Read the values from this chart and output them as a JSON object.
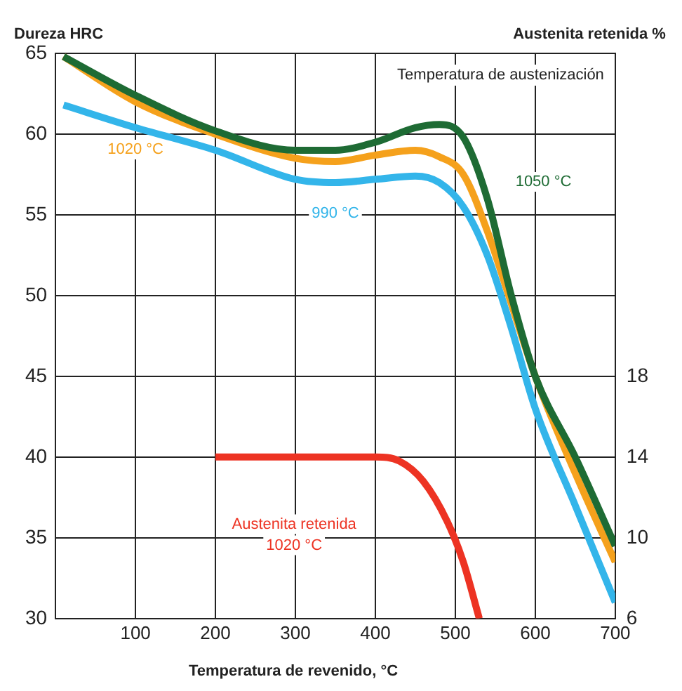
{
  "chart_data": {
    "type": "line",
    "ylabel": "Dureza HRC",
    "y2label": "Austenita retenida %",
    "xlabel": "Temperatura de revenido, °C",
    "annotations": [
      "Temperatura de austenización"
    ],
    "xlim": [
      0,
      700
    ],
    "xticks": [
      100,
      200,
      300,
      400,
      500,
      600,
      700
    ],
    "ylim": [
      30,
      65
    ],
    "yticks": [
      30,
      35,
      40,
      45,
      50,
      55,
      60,
      65
    ],
    "y2lim": [
      6,
      34
    ],
    "y2ticks": [
      6,
      10,
      14,
      18
    ],
    "grid": true,
    "legend": false,
    "marker": "none",
    "line_style": "solid",
    "series": [
      {
        "name": "1050 °C",
        "color": "#1e6b34",
        "x": [
          10,
          100,
          200,
          300,
          350,
          400,
          450,
          480,
          510,
          540,
          570,
          600,
          650,
          700
        ],
        "values": [
          64.8,
          62.4,
          60.2,
          59,
          59,
          59.5,
          60.4,
          60.6,
          59.8,
          56,
          50,
          45,
          40,
          34.5
        ]
      },
      {
        "name": "1020 °C",
        "color": "#f5a11c",
        "x": [
          10,
          100,
          200,
          300,
          350,
          400,
          450,
          480,
          510,
          540,
          570,
          600,
          650,
          700
        ],
        "values": [
          64.8,
          62,
          60,
          58.5,
          58.3,
          58.7,
          59,
          58.6,
          57.5,
          54,
          49.5,
          45,
          39,
          33.5
        ]
      },
      {
        "name": "990 °C",
        "color": "#33b5ea",
        "x": [
          10,
          100,
          200,
          300,
          350,
          400,
          450,
          480,
          510,
          540,
          570,
          600,
          650,
          700
        ],
        "values": [
          61.8,
          60.4,
          59,
          57.2,
          57,
          57.2,
          57.4,
          57,
          55.5,
          52.5,
          48,
          43,
          37,
          31
        ]
      },
      {
        "name": "Austenita retenida\n1020 °C",
        "color": "#ed3323",
        "axis": "y2",
        "x": [
          200,
          300,
          400,
          430,
          460,
          490,
          510,
          530
        ],
        "values": [
          14,
          14,
          14,
          13.8,
          12.8,
          10.8,
          8.8,
          6
        ]
      }
    ]
  }
}
